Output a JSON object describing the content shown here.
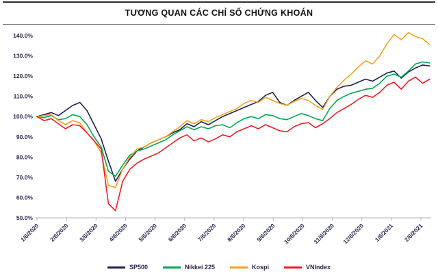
{
  "title": "TƯƠNG QUAN CÁC CHỈ SỐ CHỨNG KHOÁN",
  "chart_data": {
    "type": "line",
    "title": "TƯƠNG QUAN CÁC CHỈ SỐ CHỨNG KHOÁN",
    "grid": false,
    "legend_position": "bottom",
    "ylim": [
      50,
      140
    ],
    "y_tick_step": 10,
    "y_tick_labels": [
      "50.0%",
      "60.0%",
      "70.0%",
      "80.0%",
      "90.0%",
      "100.0%",
      "110.0%",
      "120.0%",
      "130.0%",
      "140.0%"
    ],
    "x_tick_labels": [
      "1/6/2020",
      "2/6/2020",
      "3/6/2020",
      "4/6/2020",
      "5/6/2020",
      "6/6/2020",
      "7/6/2020",
      "8/6/2020",
      "9/6/2020",
      "10/6/2020",
      "11/6/2020",
      "12/6/2020",
      "1/6/2021",
      "2/6/2021"
    ],
    "x_extent_months": 13.3,
    "series": [
      {
        "name": "SP500",
        "color": "#1f1f4e",
        "values": [
          100,
          101,
          102,
          100.5,
          103,
          105.5,
          107,
          103,
          96,
          89,
          78,
          68,
          74,
          79,
          83,
          85,
          87,
          88.5,
          90,
          92,
          93.5,
          96.5,
          95,
          97.5,
          96,
          98,
          100,
          101.5,
          103,
          104.5,
          106,
          107.5,
          110.5,
          112,
          107,
          105.5,
          108,
          110,
          112,
          108,
          104.5,
          110,
          113.5,
          115,
          115.5,
          117,
          118.5,
          117.5,
          119.5,
          121.5,
          122.5,
          119,
          122,
          124,
          125.5,
          125
        ]
      },
      {
        "name": "Nikkei 225",
        "color": "#00a651",
        "values": [
          100,
          99.5,
          100.5,
          98.5,
          99,
          101,
          100,
          96,
          90,
          85,
          73,
          70.5,
          76,
          81,
          83,
          84,
          85.5,
          87,
          88.5,
          91,
          93,
          95,
          93.5,
          95,
          94,
          95.5,
          96,
          94.5,
          97,
          99,
          100,
          99,
          101,
          100.5,
          99,
          98.5,
          100,
          101.5,
          100.5,
          99,
          98,
          104,
          108,
          110,
          111.5,
          112.5,
          113.5,
          114,
          116.5,
          120,
          121,
          119.5,
          122.5,
          126,
          127,
          126.5
        ]
      },
      {
        "name": "Kospi",
        "color": "#f5a21b",
        "values": [
          100,
          100.5,
          101,
          98,
          96,
          98,
          97,
          92,
          88,
          82,
          66,
          65,
          74,
          80,
          84,
          85,
          87,
          88.5,
          90,
          92.5,
          95,
          98,
          96.5,
          98.5,
          97.5,
          99.5,
          101,
          102.5,
          104,
          106.5,
          108,
          107,
          109.5,
          108,
          106.5,
          105.5,
          107.5,
          109,
          108,
          105.5,
          103.5,
          110,
          114.5,
          118,
          121,
          124.5,
          127.5,
          126,
          130,
          136,
          140.5,
          138,
          141.5,
          139.5,
          138.5,
          135.5
        ]
      },
      {
        "name": "VNIndex",
        "color": "#ed1c24",
        "values": [
          100,
          98,
          99,
          96.5,
          94,
          96,
          95.5,
          92,
          88,
          84,
          57,
          53.5,
          68,
          74,
          77,
          79,
          80.5,
          82,
          84.5,
          87,
          89.5,
          91,
          88,
          89.5,
          87.5,
          89,
          91,
          90,
          92.5,
          94,
          95.5,
          94,
          96,
          94.5,
          93,
          92.5,
          95,
          96.5,
          97,
          94.5,
          96.5,
          99,
          102,
          104,
          106,
          108.5,
          110.5,
          109.5,
          112,
          115.5,
          117,
          113.5,
          117.5,
          119.5,
          116.5,
          118.5
        ]
      }
    ]
  }
}
